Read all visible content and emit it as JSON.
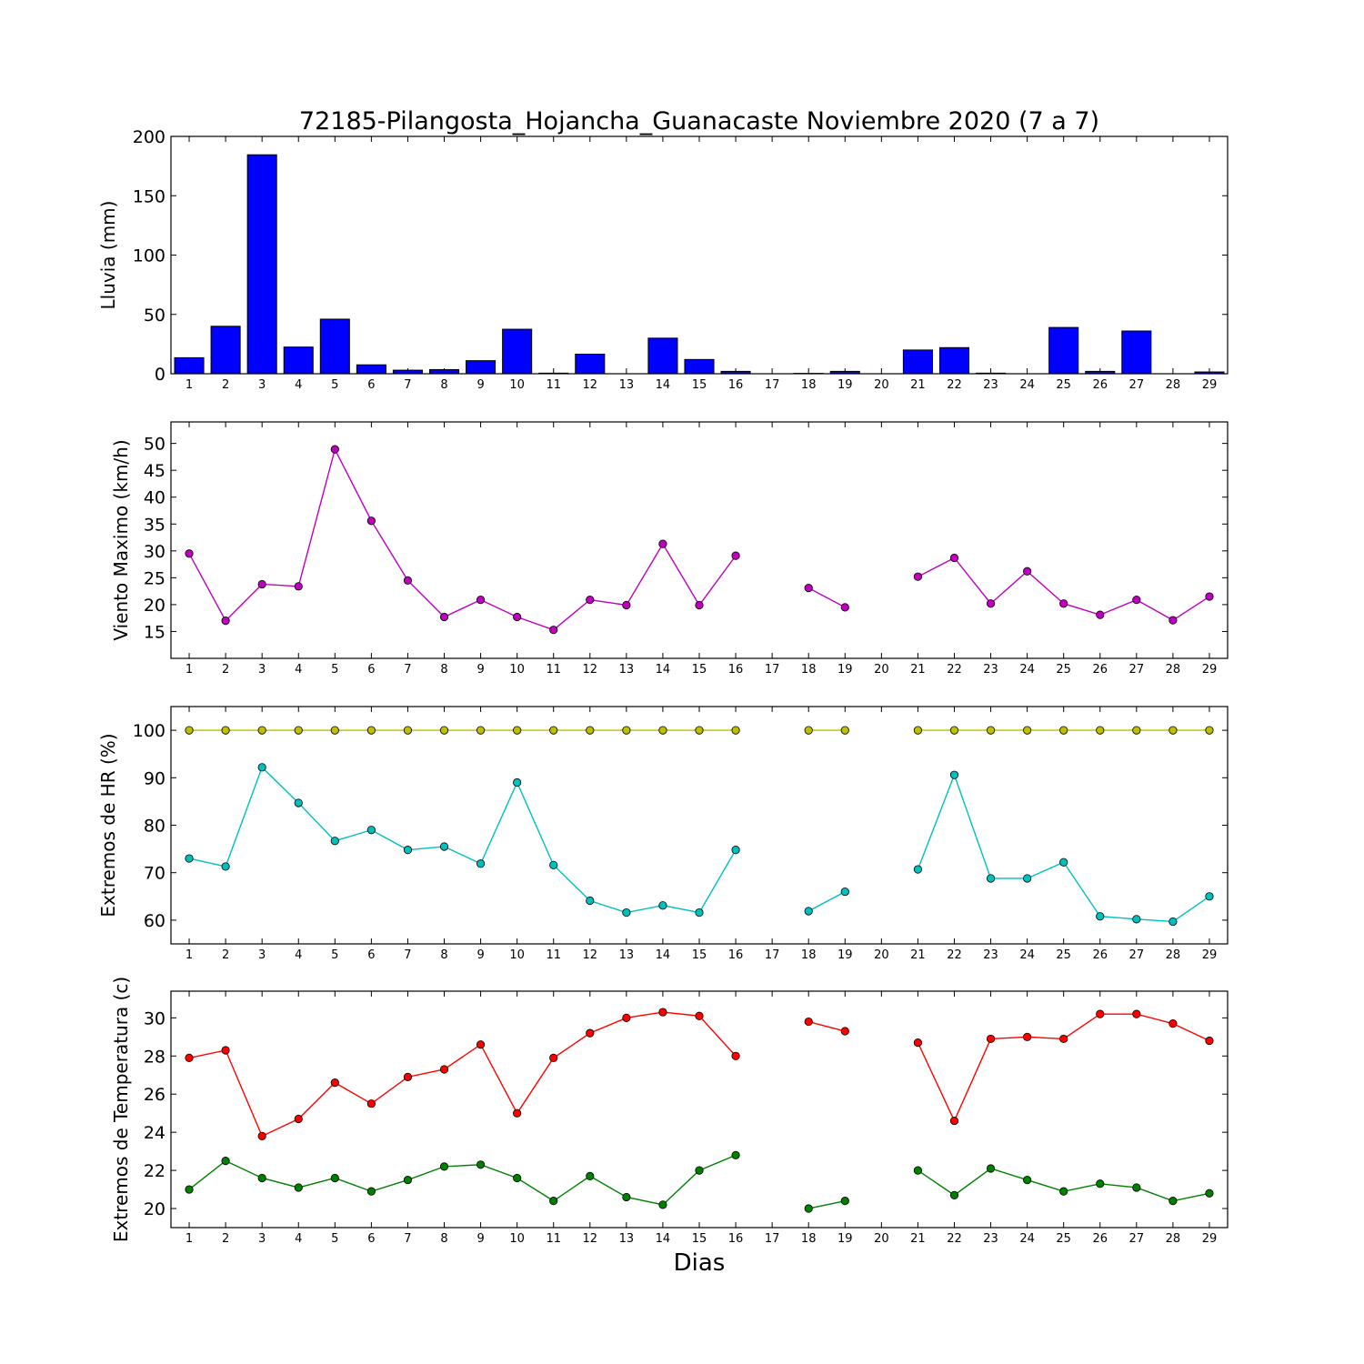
{
  "title": "72185-Pilangosta_Hojancha_Guanacaste Noviembre 2020  (7 a 7)",
  "xlabel": "Dias",
  "colors": {
    "rain": "#0000ff",
    "wind": "#bf00bf",
    "hr_max": "#bfbf00",
    "hr_min": "#00bfbf",
    "temp_max": "#ff0000",
    "temp_min": "#008000"
  },
  "chart_data": [
    {
      "type": "bar",
      "ylabel": "Lluvia (mm)",
      "ylim": [
        0,
        200
      ],
      "yticks": [
        0,
        50,
        100,
        150,
        200
      ],
      "xlim": [
        0.5,
        29.5
      ],
      "categories": [
        "1",
        "2",
        "3",
        "4",
        "5",
        "6",
        "7",
        "8",
        "9",
        "10",
        "11",
        "12",
        "13",
        "14",
        "15",
        "16",
        "17",
        "18",
        "19",
        "20",
        "21",
        "22",
        "23",
        "24",
        "25",
        "26",
        "27",
        "28",
        "29"
      ],
      "series": [
        {
          "values": [
            13.5,
            40,
            184.5,
            22.5,
            46,
            7.5,
            3,
            3.5,
            11,
            37.5,
            0.5,
            16.5,
            0,
            30,
            12,
            2,
            0,
            0.3,
            2,
            0,
            20,
            22,
            0.5,
            0,
            39,
            2,
            36,
            0,
            1.5
          ]
        }
      ]
    },
    {
      "type": "line",
      "ylabel": "Viento Maximo (km/h)",
      "ylim": [
        10,
        54
      ],
      "yticks": [
        15,
        20,
        25,
        30,
        35,
        40,
        45,
        50
      ],
      "xlim": [
        0.5,
        29.5
      ],
      "x": [
        1,
        2,
        3,
        4,
        5,
        6,
        7,
        8,
        9,
        10,
        11,
        12,
        13,
        14,
        15,
        16,
        17,
        18,
        19,
        20,
        21,
        22,
        23,
        24,
        25,
        26,
        27,
        28,
        29
      ],
      "series": [
        {
          "values": [
            29.5,
            17,
            23.8,
            23.4,
            48.9,
            35.6,
            24.5,
            17.7,
            20.9,
            17.7,
            15.3,
            20.9,
            19.9,
            31.3,
            19.9,
            29.1,
            null,
            23.1,
            19.5,
            null,
            25.2,
            28.7,
            20.2,
            26.2,
            20.2,
            18.1,
            20.9,
            17.1,
            21.5
          ]
        }
      ]
    },
    {
      "type": "line",
      "ylabel": "Extremos de HR (%)",
      "ylim": [
        55,
        105
      ],
      "yticks": [
        60,
        70,
        80,
        90,
        100
      ],
      "xlim": [
        0.5,
        29.5
      ],
      "x": [
        1,
        2,
        3,
        4,
        5,
        6,
        7,
        8,
        9,
        10,
        11,
        12,
        13,
        14,
        15,
        16,
        17,
        18,
        19,
        20,
        21,
        22,
        23,
        24,
        25,
        26,
        27,
        28,
        29
      ],
      "series": [
        {
          "values": [
            100,
            100,
            100,
            100,
            100,
            100,
            100,
            100,
            100,
            100,
            100,
            100,
            100,
            100,
            100,
            100,
            null,
            100,
            100,
            null,
            100,
            100,
            100,
            100,
            100,
            100,
            100,
            100,
            100
          ]
        },
        {
          "values": [
            73,
            71.3,
            92.2,
            84.7,
            76.7,
            79,
            74.8,
            75.5,
            71.9,
            89,
            71.6,
            64.1,
            61.6,
            63.1,
            61.6,
            74.8,
            null,
            61.9,
            66,
            null,
            70.7,
            90.6,
            68.8,
            68.8,
            72.2,
            60.8,
            60.2,
            59.7,
            65
          ]
        }
      ]
    },
    {
      "type": "line",
      "ylabel": "Extremos de Temperatura (c)",
      "ylim": [
        19,
        31.4
      ],
      "yticks": [
        20,
        22,
        24,
        26,
        28,
        30
      ],
      "xlim": [
        0.5,
        29.5
      ],
      "x": [
        1,
        2,
        3,
        4,
        5,
        6,
        7,
        8,
        9,
        10,
        11,
        12,
        13,
        14,
        15,
        16,
        17,
        18,
        19,
        20,
        21,
        22,
        23,
        24,
        25,
        26,
        27,
        28,
        29
      ],
      "series": [
        {
          "values": [
            27.9,
            28.3,
            23.8,
            24.7,
            26.6,
            25.5,
            26.9,
            27.3,
            28.6,
            25,
            27.9,
            29.2,
            30,
            30.3,
            30.1,
            28,
            null,
            29.8,
            29.3,
            null,
            28.7,
            24.6,
            28.9,
            29,
            28.9,
            30.2,
            30.2,
            29.7,
            28.8
          ]
        },
        {
          "values": [
            21,
            22.5,
            21.6,
            21.1,
            21.6,
            20.9,
            21.5,
            22.2,
            22.3,
            21.6,
            20.4,
            21.7,
            20.6,
            20.2,
            22,
            22.8,
            null,
            20,
            20.4,
            null,
            22,
            20.7,
            22.1,
            21.5,
            20.9,
            21.3,
            21.1,
            20.4,
            20.8
          ]
        }
      ]
    }
  ]
}
